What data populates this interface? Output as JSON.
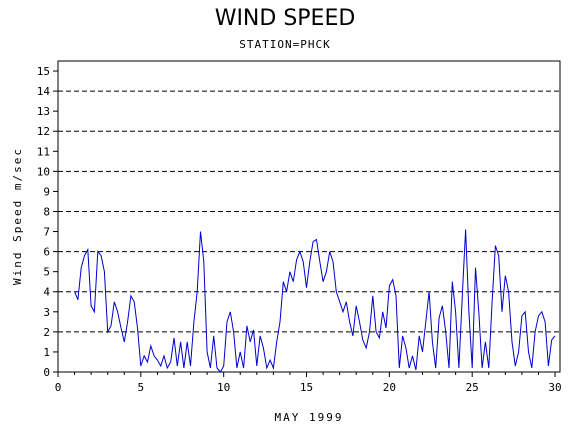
{
  "chart_data": {
    "type": "line",
    "title": "WIND SPEED",
    "subtitle": "STATION=PHCK",
    "xlabel": "MAY 1999",
    "ylabel": "Wind Speed m/sec",
    "xlim": [
      0,
      30.3
    ],
    "ylim": [
      0,
      15.5
    ],
    "x_ticks": [
      0,
      5,
      10,
      15,
      20,
      25,
      30
    ],
    "y_ticks": [
      0,
      1,
      2,
      3,
      4,
      5,
      6,
      7,
      8,
      9,
      10,
      11,
      12,
      13,
      14,
      15
    ],
    "y_gridlines": [
      0,
      2,
      4,
      6,
      8,
      10,
      12,
      14
    ],
    "grid": "horizontal dashed",
    "line_color": "#0000cc",
    "series": [
      {
        "values": [
          [
            1.0,
            4.0
          ],
          [
            1.2,
            3.6
          ],
          [
            1.4,
            5.2
          ],
          [
            1.6,
            5.8
          ],
          [
            1.8,
            6.1
          ],
          [
            2.0,
            3.3
          ],
          [
            2.2,
            3.0
          ],
          [
            2.4,
            6.0
          ],
          [
            2.6,
            5.8
          ],
          [
            2.8,
            5.0
          ],
          [
            3.0,
            2.0
          ],
          [
            3.2,
            2.3
          ],
          [
            3.4,
            3.5
          ],
          [
            3.6,
            3.0
          ],
          [
            3.8,
            2.2
          ],
          [
            4.0,
            1.5
          ],
          [
            4.2,
            2.5
          ],
          [
            4.4,
            3.8
          ],
          [
            4.6,
            3.5
          ],
          [
            4.8,
            2.2
          ],
          [
            5.0,
            0.3
          ],
          [
            5.2,
            0.8
          ],
          [
            5.4,
            0.5
          ],
          [
            5.6,
            1.3
          ],
          [
            5.8,
            0.8
          ],
          [
            6.0,
            0.6
          ],
          [
            6.2,
            0.3
          ],
          [
            6.4,
            0.8
          ],
          [
            6.6,
            0.2
          ],
          [
            6.8,
            0.5
          ],
          [
            7.0,
            1.7
          ],
          [
            7.2,
            0.3
          ],
          [
            7.4,
            1.5
          ],
          [
            7.6,
            0.2
          ],
          [
            7.8,
            1.5
          ],
          [
            8.0,
            0.3
          ],
          [
            8.2,
            2.5
          ],
          [
            8.4,
            4.0
          ],
          [
            8.6,
            7.0
          ],
          [
            8.8,
            5.5
          ],
          [
            9.0,
            1.0
          ],
          [
            9.2,
            0.2
          ],
          [
            9.4,
            1.8
          ],
          [
            9.6,
            0.2
          ],
          [
            9.8,
            0.0
          ],
          [
            10.0,
            0.3
          ],
          [
            10.2,
            2.5
          ],
          [
            10.4,
            3.0
          ],
          [
            10.6,
            2.0
          ],
          [
            10.8,
            0.2
          ],
          [
            11.0,
            1.0
          ],
          [
            11.2,
            0.2
          ],
          [
            11.4,
            2.3
          ],
          [
            11.6,
            1.5
          ],
          [
            11.8,
            2.1
          ],
          [
            12.0,
            0.3
          ],
          [
            12.2,
            1.8
          ],
          [
            12.4,
            1.2
          ],
          [
            12.6,
            0.2
          ],
          [
            12.8,
            0.6
          ],
          [
            13.0,
            0.2
          ],
          [
            13.2,
            1.5
          ],
          [
            13.4,
            2.5
          ],
          [
            13.6,
            4.5
          ],
          [
            13.8,
            4.0
          ],
          [
            14.0,
            5.0
          ],
          [
            14.2,
            4.5
          ],
          [
            14.4,
            5.6
          ],
          [
            14.6,
            6.0
          ],
          [
            14.8,
            5.5
          ],
          [
            15.0,
            4.2
          ],
          [
            15.2,
            5.5
          ],
          [
            15.4,
            6.5
          ],
          [
            15.6,
            6.6
          ],
          [
            15.8,
            5.5
          ],
          [
            16.0,
            4.5
          ],
          [
            16.2,
            5.0
          ],
          [
            16.4,
            6.0
          ],
          [
            16.6,
            5.5
          ],
          [
            16.8,
            4.0
          ],
          [
            17.0,
            3.5
          ],
          [
            17.2,
            3.0
          ],
          [
            17.4,
            3.5
          ],
          [
            17.6,
            2.5
          ],
          [
            17.8,
            1.8
          ],
          [
            18.0,
            3.3
          ],
          [
            18.2,
            2.5
          ],
          [
            18.4,
            1.6
          ],
          [
            18.6,
            1.2
          ],
          [
            18.8,
            2.0
          ],
          [
            19.0,
            3.8
          ],
          [
            19.2,
            2.0
          ],
          [
            19.4,
            1.7
          ],
          [
            19.6,
            3.0
          ],
          [
            19.8,
            2.2
          ],
          [
            20.0,
            4.3
          ],
          [
            20.2,
            4.6
          ],
          [
            20.4,
            3.8
          ],
          [
            20.6,
            0.2
          ],
          [
            20.8,
            1.8
          ],
          [
            21.0,
            1.2
          ],
          [
            21.2,
            0.2
          ],
          [
            21.4,
            0.8
          ],
          [
            21.6,
            0.1
          ],
          [
            21.8,
            1.8
          ],
          [
            22.0,
            1.0
          ],
          [
            22.2,
            2.5
          ],
          [
            22.4,
            4.0
          ],
          [
            22.6,
            1.5
          ],
          [
            22.8,
            0.2
          ],
          [
            23.0,
            2.7
          ],
          [
            23.2,
            3.3
          ],
          [
            23.4,
            2.0
          ],
          [
            23.6,
            0.2
          ],
          [
            23.8,
            4.5
          ],
          [
            24.0,
            3.0
          ],
          [
            24.2,
            0.2
          ],
          [
            24.4,
            3.8
          ],
          [
            24.6,
            7.1
          ],
          [
            24.8,
            3.0
          ],
          [
            25.0,
            0.2
          ],
          [
            25.2,
            5.2
          ],
          [
            25.4,
            3.0
          ],
          [
            25.6,
            0.2
          ],
          [
            25.8,
            1.5
          ],
          [
            26.0,
            0.2
          ],
          [
            26.2,
            3.5
          ],
          [
            26.4,
            6.3
          ],
          [
            26.6,
            5.8
          ],
          [
            26.8,
            3.0
          ],
          [
            27.0,
            4.8
          ],
          [
            27.2,
            4.0
          ],
          [
            27.4,
            1.5
          ],
          [
            27.6,
            0.3
          ],
          [
            27.8,
            1.0
          ],
          [
            28.0,
            2.8
          ],
          [
            28.2,
            3.0
          ],
          [
            28.4,
            1.0
          ],
          [
            28.6,
            0.2
          ],
          [
            28.8,
            2.0
          ],
          [
            29.0,
            2.8
          ],
          [
            29.2,
            3.0
          ],
          [
            29.4,
            2.5
          ],
          [
            29.6,
            0.3
          ],
          [
            29.8,
            1.6
          ],
          [
            30.0,
            1.8
          ]
        ]
      }
    ]
  }
}
